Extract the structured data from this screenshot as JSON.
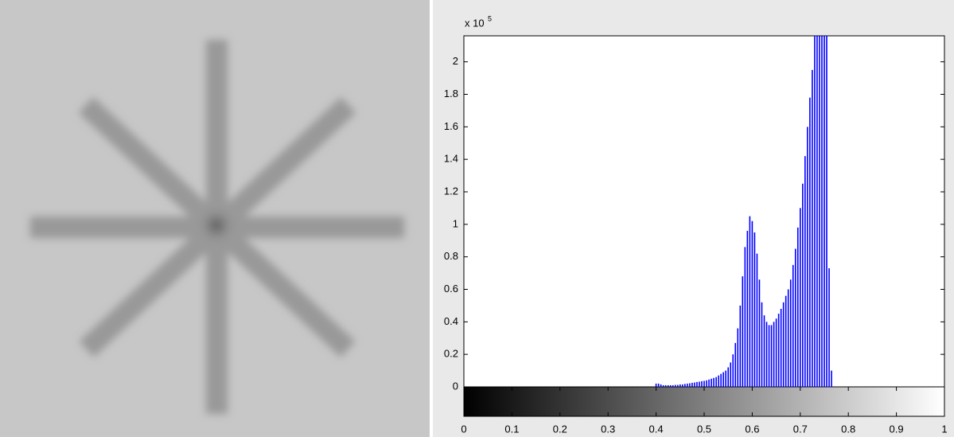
{
  "chart_data": {
    "type": "bar",
    "y_scale_label": "x 10",
    "y_scale_exponent": "5",
    "x": [
      0.4,
      0.405,
      0.41,
      0.415,
      0.42,
      0.425,
      0.43,
      0.435,
      0.44,
      0.445,
      0.45,
      0.455,
      0.46,
      0.465,
      0.47,
      0.475,
      0.48,
      0.485,
      0.49,
      0.495,
      0.5,
      0.505,
      0.51,
      0.515,
      0.52,
      0.525,
      0.53,
      0.535,
      0.54,
      0.545,
      0.55,
      0.555,
      0.56,
      0.565,
      0.57,
      0.575,
      0.58,
      0.585,
      0.59,
      0.595,
      0.6,
      0.605,
      0.61,
      0.615,
      0.62,
      0.625,
      0.63,
      0.635,
      0.64,
      0.645,
      0.65,
      0.655,
      0.66,
      0.665,
      0.67,
      0.675,
      0.68,
      0.685,
      0.69,
      0.695,
      0.7,
      0.705,
      0.71,
      0.715,
      0.72,
      0.725,
      0.73,
      0.735,
      0.74,
      0.745,
      0.75,
      0.755,
      0.76,
      0.765
    ],
    "values": [
      0.02,
      0.02,
      0.015,
      0.01,
      0.01,
      0.01,
      0.01,
      0.01,
      0.012,
      0.012,
      0.015,
      0.015,
      0.018,
      0.02,
      0.022,
      0.025,
      0.027,
      0.03,
      0.032,
      0.035,
      0.037,
      0.04,
      0.045,
      0.05,
      0.055,
      0.06,
      0.07,
      0.08,
      0.09,
      0.1,
      0.12,
      0.15,
      0.2,
      0.27,
      0.36,
      0.5,
      0.68,
      0.86,
      0.96,
      1.05,
      1.02,
      0.95,
      0.82,
      0.66,
      0.52,
      0.44,
      0.4,
      0.38,
      0.38,
      0.4,
      0.42,
      0.45,
      0.48,
      0.52,
      0.56,
      0.6,
      0.66,
      0.75,
      0.85,
      0.98,
      1.1,
      1.25,
      1.42,
      1.6,
      1.78,
      1.95,
      2.16,
      2.16,
      2.16,
      2.16,
      2.16,
      2.16,
      0.73,
      0.1
    ],
    "color": "#0000ff",
    "xlim": [
      0,
      1
    ],
    "xticks": [
      0,
      0.1,
      0.2,
      0.3,
      0.4,
      0.5,
      0.6,
      0.7,
      0.8,
      0.9,
      1
    ],
    "ylim": [
      0,
      2.16
    ],
    "yticks": [
      0,
      0.2,
      0.4,
      0.6,
      0.8,
      1,
      1.2,
      1.4,
      1.6,
      1.8,
      2
    ],
    "colorbar": true
  }
}
